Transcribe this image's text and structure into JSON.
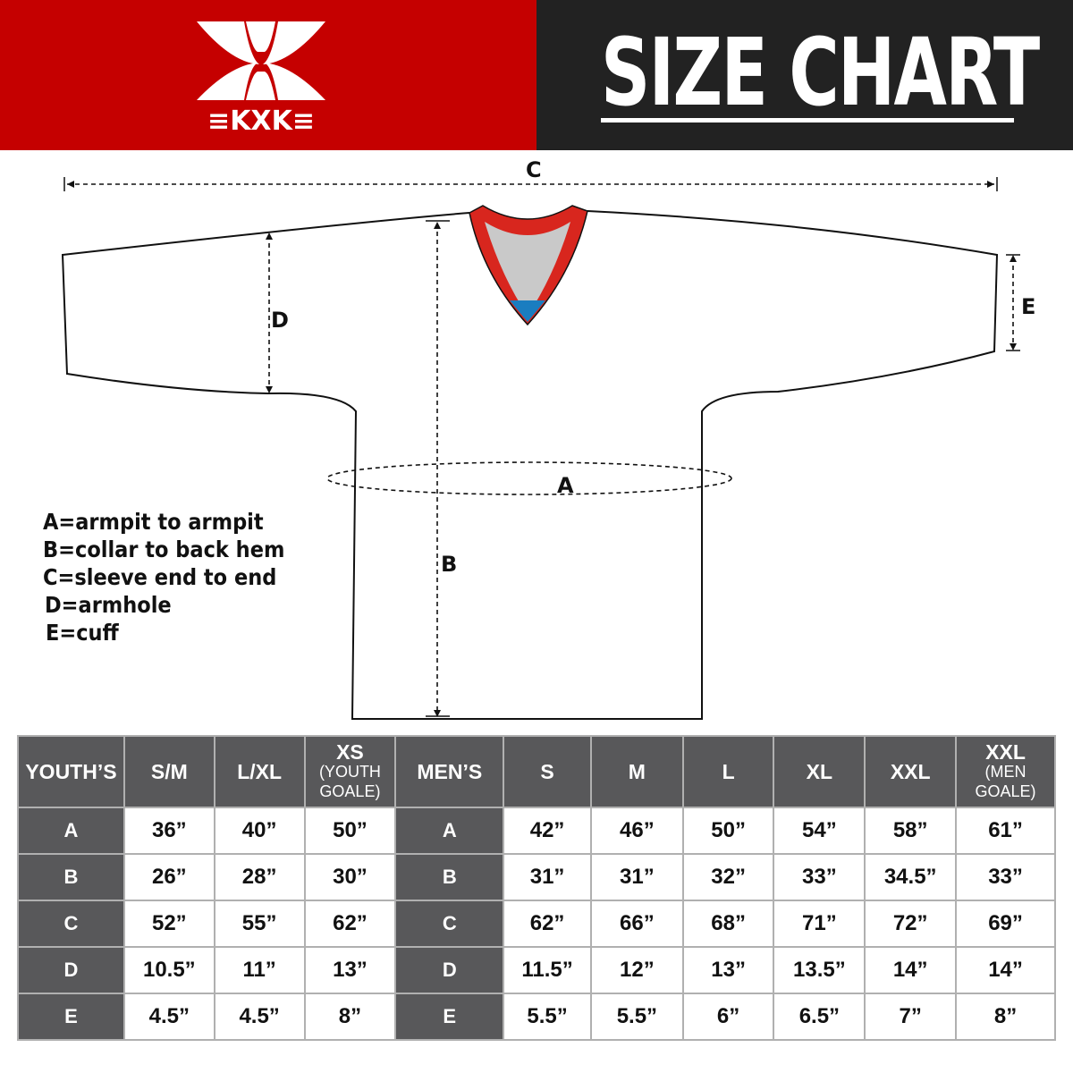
{
  "brand": {
    "name": "KXK",
    "colors": {
      "red": "#c50000",
      "dark": "#222222",
      "cell": "#58585a"
    }
  },
  "title": "SIZE CHART",
  "diagram_labels": {
    "a": "A",
    "b": "B",
    "c": "C",
    "d": "D",
    "e": "E"
  },
  "legend": [
    "A=armpit to armpit",
    "B=collar to back hem",
    "C=sleeve end to end",
    "D=armhole",
    "E=cuff"
  ],
  "table": {
    "youth_header": "YOUTH’S",
    "youth_sizes": [
      {
        "label": "S/M"
      },
      {
        "label": "L/XL"
      },
      {
        "label": "XS",
        "sub": "(YOUTH GOALE)"
      }
    ],
    "men_header": "MEN’S",
    "men_sizes": [
      {
        "label": "S"
      },
      {
        "label": "M"
      },
      {
        "label": "L"
      },
      {
        "label": "XL"
      },
      {
        "label": "XXL"
      },
      {
        "label": "XXL",
        "sub": "(MEN GOALE)"
      }
    ],
    "rows": [
      {
        "key": "A",
        "youth": [
          "36”",
          "40”",
          "50”"
        ],
        "men": [
          "42”",
          "46”",
          "50”",
          "54”",
          "58”",
          "61”"
        ]
      },
      {
        "key": "B",
        "youth": [
          "26”",
          "28”",
          "30”"
        ],
        "men": [
          "31”",
          "31”",
          "32”",
          "33”",
          "34.5”",
          "33”"
        ]
      },
      {
        "key": "C",
        "youth": [
          "52”",
          "55”",
          "62”"
        ],
        "men": [
          "62”",
          "66”",
          "68”",
          "71”",
          "72”",
          "69”"
        ]
      },
      {
        "key": "D",
        "youth": [
          "10.5”",
          "11”",
          "13”"
        ],
        "men": [
          "11.5”",
          "12”",
          "13”",
          "13.5”",
          "14”",
          "14”"
        ]
      },
      {
        "key": "E",
        "youth": [
          "4.5”",
          "4.5”",
          "8”"
        ],
        "men": [
          "5.5”",
          "5.5”",
          "6”",
          "6.5”",
          "7”",
          "8”"
        ]
      }
    ]
  }
}
